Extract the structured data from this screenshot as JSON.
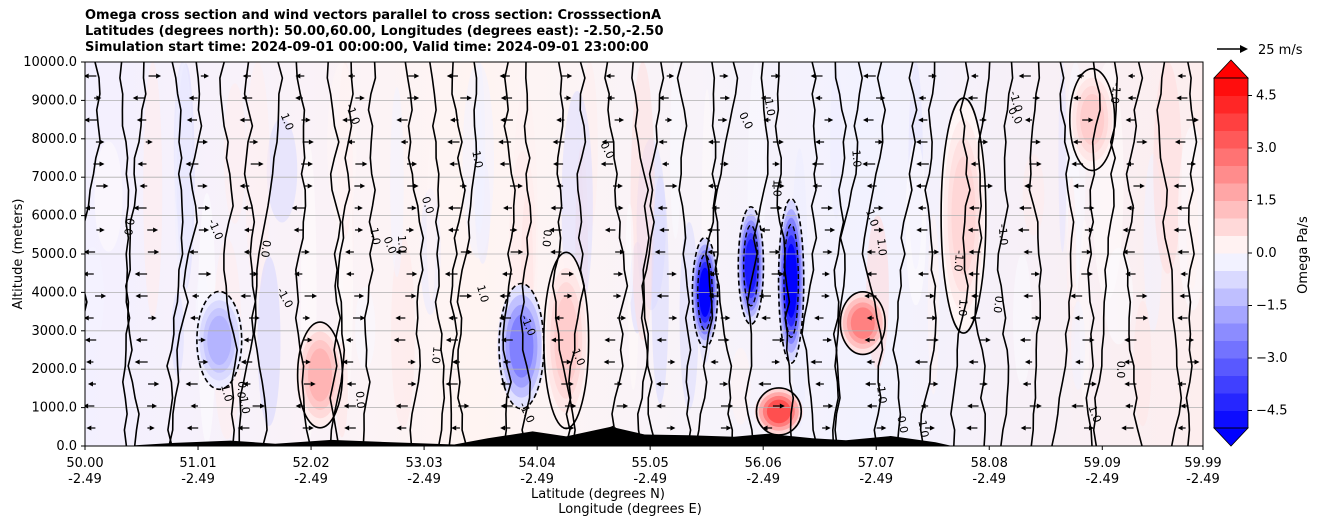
{
  "chart_data": {
    "type": "heatmap",
    "title_lines": [
      "Omega cross section and wind vectors parallel to cross section: CrosssectionA",
      "Latitudes (degrees north): 50.00,60.00, Longitudes (degrees east): -2.50,-2.50",
      "Simulation start time: 2024-09-01 00:00:00, Valid time: 2024-09-01 23:00:00"
    ],
    "ylabel": "Altitude (meters)",
    "xlabel_lat": "Latitude (degrees N)",
    "xlabel_lon": "Longitude (degrees E)",
    "ylim": [
      0,
      10000
    ],
    "y_ticks": [
      "0.0",
      "1000.0",
      "2000.0",
      "3000.0",
      "4000.0",
      "5000.0",
      "6000.0",
      "7000.0",
      "8000.0",
      "9000.0",
      "10000.0"
    ],
    "y_tick_values": [
      0,
      1000,
      2000,
      3000,
      4000,
      5000,
      6000,
      7000,
      8000,
      9000,
      10000
    ],
    "x_range": [
      50.0,
      59.99
    ],
    "x_ticks": [
      {
        "lat": "50.00",
        "lon": "-2.49",
        "value": 50.0
      },
      {
        "lat": "51.01",
        "lon": "-2.49",
        "value": 51.01
      },
      {
        "lat": "52.02",
        "lon": "-2.49",
        "value": 52.02
      },
      {
        "lat": "53.03",
        "lon": "-2.49",
        "value": 53.03
      },
      {
        "lat": "54.04",
        "lon": "-2.49",
        "value": 54.04
      },
      {
        "lat": "55.05",
        "lon": "-2.49",
        "value": 55.05
      },
      {
        "lat": "56.06",
        "lon": "-2.49",
        "value": 56.06
      },
      {
        "lat": "57.07",
        "lon": "-2.49",
        "value": 57.07
      },
      {
        "lat": "58.08",
        "lon": "-2.49",
        "value": 58.08
      },
      {
        "lat": "59.09",
        "lon": "-2.49",
        "value": 59.09
      },
      {
        "lat": "59.99",
        "lon": "-2.49",
        "value": 59.99
      }
    ],
    "grid": "horizontal",
    "colorbar": {
      "label": "Omega Pa/s",
      "range": [
        -5.0,
        5.0
      ],
      "ticks": [
        "4.5",
        "3.0",
        "1.5",
        "0.0",
        "−1.5",
        "−3.0",
        "−4.5"
      ],
      "tick_values": [
        4.5,
        3.0,
        1.5,
        0.0,
        -1.5,
        -3.0,
        -4.5
      ],
      "extend": "both",
      "colormap": "bwr"
    },
    "quiver_key": "25 m/s",
    "contour_labels": [
      "0.0",
      "-1.0",
      "1.0"
    ],
    "features": [
      {
        "lat": 51.2,
        "alt_min": 1500,
        "alt_max": 4000,
        "omega": -1.5
      },
      {
        "lat": 52.1,
        "alt_min": 500,
        "alt_max": 3200,
        "omega": 1.5
      },
      {
        "lat": 53.9,
        "alt_min": 1000,
        "alt_max": 4200,
        "omega": -2.5
      },
      {
        "lat": 54.3,
        "alt_min": 500,
        "alt_max": 5000,
        "omega": 1.0
      },
      {
        "lat": 55.54,
        "alt_min": 2600,
        "alt_max": 5400,
        "omega": -5.0
      },
      {
        "lat": 55.95,
        "alt_min": 3200,
        "alt_max": 6200,
        "omega": -4.5
      },
      {
        "lat": 56.31,
        "alt_min": 2200,
        "alt_max": 6400,
        "omega": -5.0
      },
      {
        "lat": 56.2,
        "alt_min": 300,
        "alt_max": 1500,
        "omega": 3.5
      },
      {
        "lat": 56.95,
        "alt_min": 2400,
        "alt_max": 4000,
        "omega": 2.5
      },
      {
        "lat": 57.85,
        "alt_min": 3000,
        "alt_max": 9000,
        "omega": 0.8
      },
      {
        "lat": 59.0,
        "alt_min": 7200,
        "alt_max": 9800,
        "omega": 1.0
      }
    ],
    "terrain": [
      {
        "lat": 50.45,
        "height": 20
      },
      {
        "lat": 50.8,
        "height": 80
      },
      {
        "lat": 51.3,
        "height": 140
      },
      {
        "lat": 51.7,
        "height": 60
      },
      {
        "lat": 52.2,
        "height": 160
      },
      {
        "lat": 52.8,
        "height": 90
      },
      {
        "lat": 53.3,
        "height": 40
      },
      {
        "lat": 53.6,
        "height": 200
      },
      {
        "lat": 54.0,
        "height": 380
      },
      {
        "lat": 54.3,
        "height": 250
      },
      {
        "lat": 54.7,
        "height": 500
      },
      {
        "lat": 55.0,
        "height": 300
      },
      {
        "lat": 55.4,
        "height": 280
      },
      {
        "lat": 55.8,
        "height": 240
      },
      {
        "lat": 56.1,
        "height": 320
      },
      {
        "lat": 56.5,
        "height": 200
      },
      {
        "lat": 56.8,
        "height": 150
      },
      {
        "lat": 57.2,
        "height": 260
      },
      {
        "lat": 57.6,
        "height": 100
      },
      {
        "lat": 57.75,
        "height": 0
      }
    ]
  },
  "colors": {
    "positive": "#ff0000",
    "negative": "#0000ff",
    "neutral": "#ffffff",
    "terrain": "#000000",
    "grid": "#b0b0b0"
  }
}
